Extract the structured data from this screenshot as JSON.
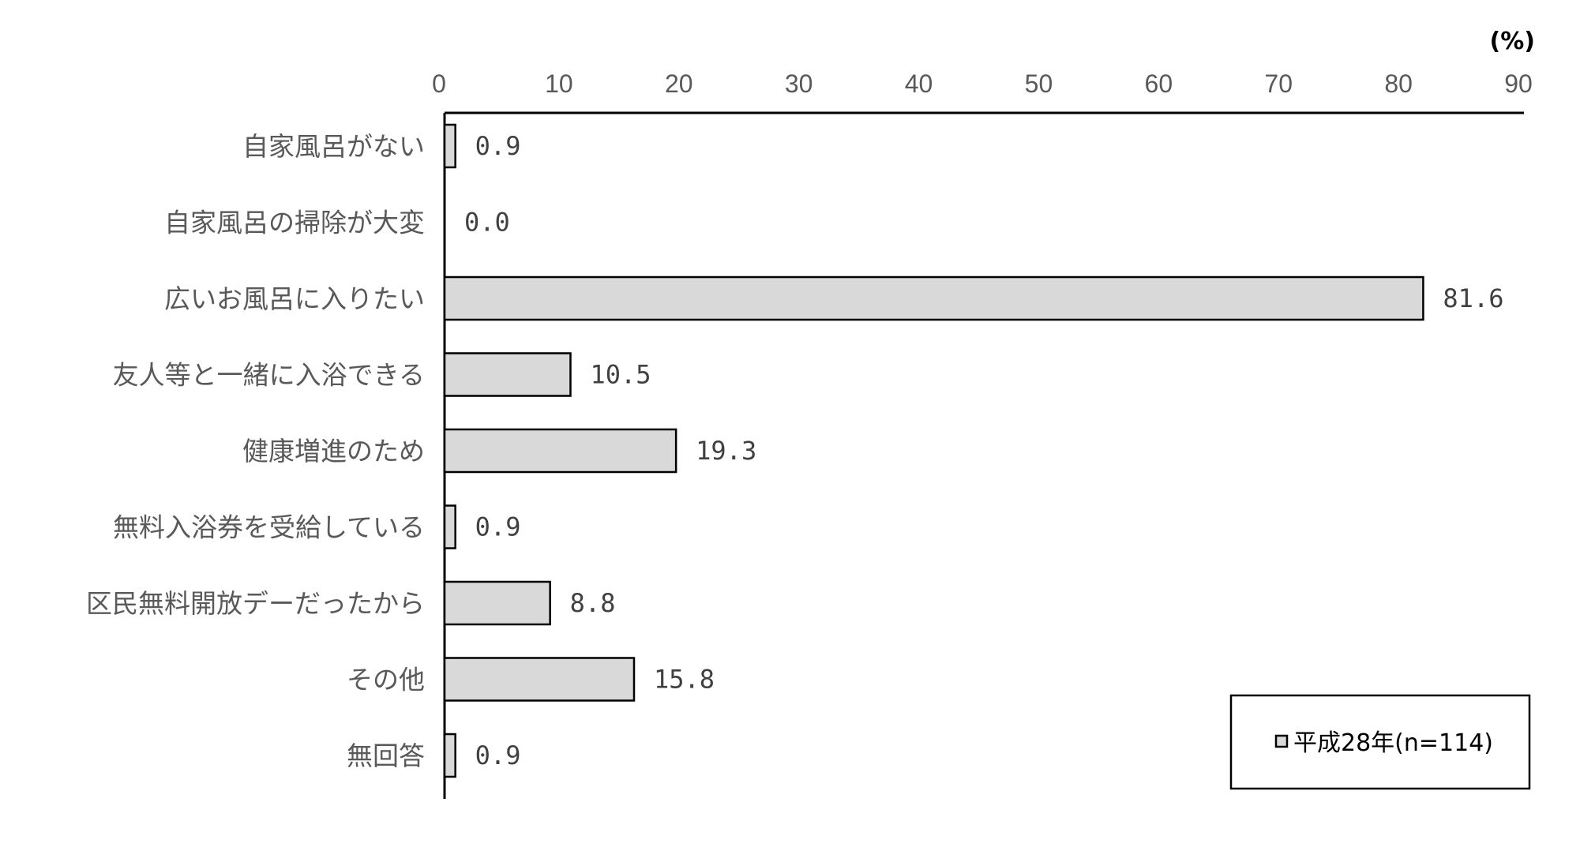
{
  "chart_data": {
    "type": "bar",
    "orientation": "horizontal",
    "unit_label": "(%)",
    "categories": [
      "自家風呂がない",
      "自家風呂の掃除が大変",
      "広いお風呂に入りたい",
      "友人等と一緒に入浴できる",
      "健康増進のため",
      "無料入浴券を受給している",
      "区民無料開放デーだったから",
      "その他",
      "無回答"
    ],
    "series": [
      {
        "name": "平成28年(n=114)",
        "values": [
          0.9,
          0.0,
          81.6,
          10.5,
          19.3,
          0.9,
          8.8,
          15.8,
          0.9
        ]
      }
    ],
    "data_labels": [
      "0.9",
      "0.0",
      "81.6",
      "10.5",
      "19.3",
      "0.9",
      "8.8",
      "15.8",
      "0.9"
    ],
    "xlim": [
      0,
      90
    ],
    "xticks": [
      0,
      10,
      20,
      30,
      40,
      50,
      60,
      70,
      80,
      90
    ],
    "x_axis_position": "top",
    "grid": false,
    "legend_position": "bottom-right",
    "bar_color": "#d9d9d9",
    "bar_edge_color": "#000000"
  }
}
